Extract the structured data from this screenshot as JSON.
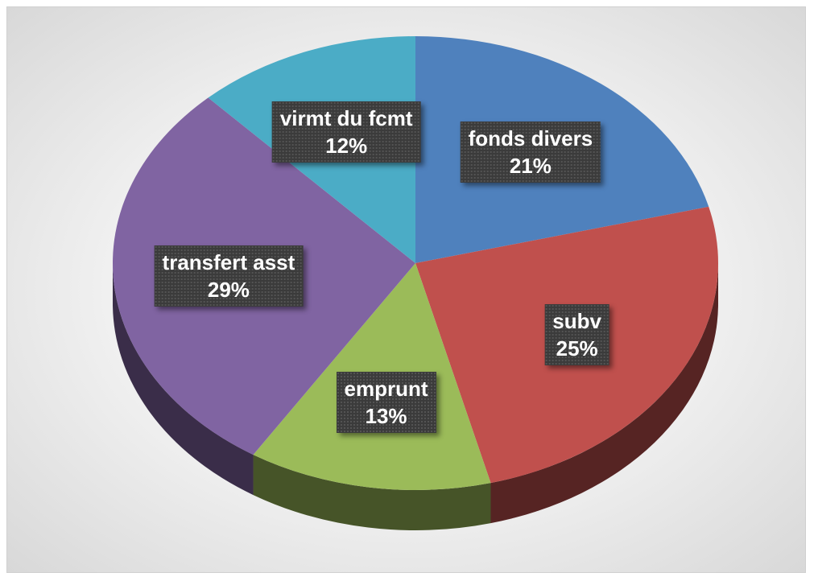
{
  "chart_data": {
    "type": "pie",
    "categories": [
      "fonds divers",
      "subv",
      "emprunt",
      "transfert asst",
      "virmt du fcmt"
    ],
    "values": [
      21,
      25,
      13,
      29,
      12
    ],
    "value_labels": [
      "21%",
      "25%",
      "13%",
      "29%",
      "12%"
    ],
    "colors": [
      "#4f81bd",
      "#c0504d",
      "#9bbb59",
      "#8064a2",
      "#4bacc6"
    ]
  }
}
